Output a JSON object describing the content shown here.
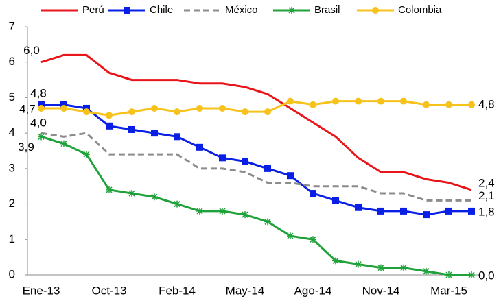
{
  "chart_data": {
    "type": "line",
    "categories": [
      "Ene-13",
      null,
      null,
      "Oct-13",
      null,
      null,
      "Feb-14",
      null,
      null,
      "May-14",
      null,
      null,
      "Ago-14",
      null,
      null,
      "Nov-14",
      null,
      null,
      "Mar-15",
      null
    ],
    "ylim": [
      0,
      7
    ],
    "yticks": [
      0,
      1,
      2,
      3,
      4,
      5,
      6,
      7
    ],
    "series": [
      {
        "name": "Perú",
        "color": "#e8161b",
        "marker": "none",
        "style": "solid",
        "values": [
          6.0,
          6.2,
          6.2,
          5.7,
          5.5,
          5.5,
          5.5,
          5.4,
          5.4,
          5.3,
          5.1,
          4.7,
          4.3,
          3.9,
          3.3,
          2.9,
          2.9,
          2.7,
          2.6,
          2.4
        ],
        "value_labels": [
          "6,0",
          null,
          null,
          null,
          null,
          null,
          null,
          null,
          null,
          null,
          null,
          null,
          null,
          null,
          null,
          null,
          null,
          null,
          null,
          "2,4"
        ]
      },
      {
        "name": "Chile",
        "color": "#0a1fe6",
        "marker": "square",
        "style": "solid",
        "values": [
          4.8,
          4.8,
          4.7,
          4.2,
          4.1,
          4.0,
          3.9,
          3.6,
          3.3,
          3.2,
          3.0,
          2.8,
          2.3,
          2.1,
          1.9,
          1.8,
          1.8,
          1.7,
          1.8,
          1.8
        ],
        "value_labels": [
          "4,8",
          null,
          null,
          null,
          null,
          null,
          null,
          null,
          null,
          null,
          null,
          null,
          null,
          null,
          null,
          null,
          null,
          null,
          null,
          "1,8"
        ]
      },
      {
        "name": "México",
        "color": "#8c8c8c",
        "marker": "none",
        "style": "dashed",
        "values": [
          4.0,
          3.9,
          4.0,
          3.4,
          3.4,
          3.4,
          3.4,
          3.0,
          3.0,
          2.9,
          2.6,
          2.6,
          2.5,
          2.5,
          2.5,
          2.3,
          2.3,
          2.1,
          2.1,
          2.1
        ],
        "value_labels": [
          "4,0",
          null,
          null,
          null,
          null,
          null,
          null,
          null,
          null,
          null,
          null,
          null,
          null,
          null,
          null,
          null,
          null,
          null,
          null,
          "2,1"
        ]
      },
      {
        "name": "Brasil",
        "color": "#1fa23a",
        "marker": "asterisk",
        "style": "solid",
        "values": [
          3.9,
          3.7,
          3.4,
          2.4,
          2.3,
          2.2,
          2.0,
          1.8,
          1.8,
          1.7,
          1.5,
          1.1,
          1.0,
          0.4,
          0.3,
          0.2,
          0.2,
          0.1,
          0.0,
          0.0
        ],
        "value_labels": [
          "3,9",
          null,
          null,
          null,
          null,
          null,
          null,
          null,
          null,
          null,
          null,
          null,
          null,
          null,
          null,
          null,
          null,
          null,
          null,
          "0,0"
        ]
      },
      {
        "name": "Colombia",
        "color": "#f7c21b",
        "marker": "circle",
        "style": "solid",
        "values": [
          4.7,
          4.7,
          4.6,
          4.5,
          4.6,
          4.7,
          4.6,
          4.7,
          4.7,
          4.6,
          4.6,
          4.9,
          4.8,
          4.9,
          4.9,
          4.9,
          4.9,
          4.8,
          4.8,
          4.8
        ],
        "value_labels": [
          "4,7",
          null,
          null,
          null,
          null,
          null,
          null,
          null,
          null,
          null,
          null,
          null,
          null,
          null,
          null,
          null,
          null,
          null,
          null,
          "4,8"
        ]
      }
    ]
  }
}
